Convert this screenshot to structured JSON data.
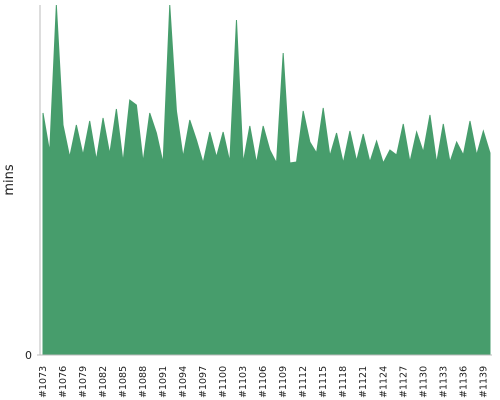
{
  "chart_data": {
    "type": "area",
    "y_label": "mins",
    "color": "#479d6c",
    "categories": [
      "#1073",
      null,
      null,
      "#1076",
      null,
      null,
      "#1079",
      null,
      null,
      "#1082",
      null,
      null,
      "#1085",
      null,
      null,
      "#1088",
      null,
      null,
      "#1091",
      null,
      null,
      "#1094",
      null,
      null,
      "#1097",
      null,
      null,
      "#1100",
      null,
      null,
      "#1103",
      null,
      null,
      "#1106",
      null,
      null,
      "#1109",
      null,
      null,
      "#1112",
      null,
      null,
      "#1115",
      null,
      null,
      "#1118",
      null,
      null,
      "#1121",
      null,
      null,
      "#1124",
      null,
      null,
      "#1127",
      null,
      null,
      "#1130",
      null,
      null,
      "#1133",
      null,
      null,
      "#1136",
      null,
      null,
      "#1139",
      null
    ],
    "values": [
      24.2,
      20.3,
      35,
      23,
      19.8,
      23,
      20,
      23.4,
      19.5,
      23.7,
      20.1,
      24.6,
      19.3,
      25.5,
      25,
      19.3,
      24.2,
      22.2,
      19.2,
      35,
      24.4,
      19.8,
      23.5,
      21.5,
      19.2,
      22.3,
      19.8,
      22.3,
      19.3,
      33.5,
      19.2,
      22.9,
      19.2,
      22.9,
      20.5,
      19.2,
      30.2,
      19.2,
      19.3,
      24.4,
      21.3,
      20.2,
      24.7,
      19.9,
      22.2,
      19.2,
      22.4,
      19.4,
      22.1,
      19.3,
      21.4,
      19.2,
      20.5,
      20,
      23.1,
      19.3,
      22.3,
      20.3,
      24,
      19.2,
      23.1,
      19.3,
      21.3,
      20,
      23.4,
      20,
      22.4,
      20.2
    ],
    "ylim": [
      0,
      35
    ],
    "yticks": [
      0
    ]
  }
}
